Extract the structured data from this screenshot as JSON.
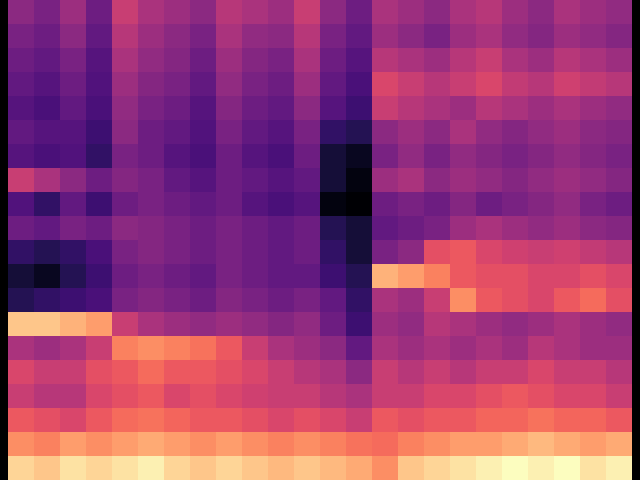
{
  "chart_data": {
    "type": "heatmap",
    "color": "magma",
    "tick_labels": false,
    "cells": [
      [
        45,
        42,
        48,
        40,
        55,
        50,
        48,
        45,
        52,
        50,
        48,
        55,
        45,
        40,
        50,
        48,
        45,
        50,
        52,
        48,
        45,
        50,
        48,
        46
      ],
      [
        42,
        40,
        45,
        38,
        52,
        48,
        45,
        42,
        50,
        46,
        45,
        52,
        42,
        38,
        48,
        45,
        42,
        48,
        50,
        46,
        44,
        48,
        46,
        44
      ],
      [
        40,
        38,
        42,
        36,
        50,
        46,
        44,
        40,
        48,
        44,
        42,
        50,
        40,
        36,
        52,
        50,
        48,
        52,
        55,
        50,
        48,
        52,
        50,
        48
      ],
      [
        38,
        36,
        40,
        35,
        48,
        44,
        42,
        38,
        46,
        42,
        40,
        48,
        38,
        34,
        58,
        55,
        52,
        55,
        58,
        54,
        52,
        56,
        54,
        52
      ],
      [
        36,
        34,
        38,
        34,
        46,
        42,
        40,
        36,
        44,
        40,
        38,
        45,
        36,
        32,
        55,
        52,
        50,
        48,
        52,
        50,
        48,
        50,
        48,
        46
      ],
      [
        38,
        36,
        36,
        32,
        45,
        40,
        38,
        35,
        42,
        38,
        36,
        42,
        30,
        28,
        45,
        48,
        45,
        50,
        46,
        44,
        46,
        48,
        45,
        44
      ],
      [
        36,
        34,
        35,
        30,
        42,
        40,
        36,
        34,
        40,
        36,
        34,
        40,
        25,
        22,
        42,
        46,
        42,
        46,
        44,
        42,
        44,
        46,
        44,
        42
      ],
      [
        55,
        50,
        45,
        40,
        44,
        42,
        38,
        36,
        40,
        38,
        36,
        38,
        25,
        20,
        48,
        50,
        45,
        48,
        46,
        44,
        46,
        48,
        46,
        44
      ],
      [
        35,
        30,
        38,
        32,
        40,
        42,
        40,
        38,
        40,
        36,
        34,
        36,
        20,
        18,
        40,
        42,
        40,
        44,
        40,
        42,
        44,
        46,
        42,
        40
      ],
      [
        40,
        38,
        42,
        40,
        45,
        44,
        42,
        40,
        42,
        40,
        38,
        40,
        28,
        25,
        38,
        40,
        42,
        48,
        50,
        48,
        46,
        48,
        45,
        44
      ],
      [
        30,
        28,
        30,
        34,
        42,
        44,
        42,
        40,
        42,
        40,
        38,
        40,
        30,
        25,
        42,
        45,
        60,
        62,
        58,
        56,
        55,
        56,
        54,
        52
      ],
      [
        25,
        22,
        28,
        32,
        40,
        42,
        40,
        38,
        42,
        40,
        38,
        38,
        32,
        28,
        75,
        72,
        68,
        62,
        60,
        60,
        58,
        58,
        60,
        58
      ],
      [
        28,
        30,
        32,
        34,
        42,
        44,
        42,
        40,
        44,
        42,
        40,
        42,
        38,
        30,
        50,
        48,
        55,
        70,
        62,
        60,
        58,
        62,
        65,
        60
      ],
      [
        78,
        78,
        75,
        72,
        55,
        50,
        48,
        46,
        48,
        46,
        44,
        46,
        40,
        32,
        48,
        46,
        52,
        50,
        48,
        46,
        48,
        50,
        48,
        46
      ],
      [
        50,
        48,
        50,
        55,
        68,
        70,
        68,
        66,
        62,
        55,
        50,
        48,
        45,
        38,
        50,
        48,
        50,
        48,
        50,
        48,
        52,
        50,
        48,
        48
      ],
      [
        58,
        55,
        55,
        60,
        62,
        65,
        62,
        62,
        60,
        58,
        55,
        52,
        50,
        45,
        55,
        52,
        55,
        52,
        55,
        55,
        58,
        55,
        55,
        52
      ],
      [
        55,
        52,
        52,
        58,
        60,
        62,
        58,
        60,
        58,
        56,
        55,
        55,
        52,
        50,
        55,
        55,
        58,
        58,
        60,
        62,
        60,
        58,
        58,
        55
      ],
      [
        62,
        60,
        58,
        62,
        65,
        66,
        64,
        62,
        62,
        60,
        58,
        60,
        58,
        55,
        62,
        60,
        62,
        62,
        64,
        64,
        66,
        64,
        64,
        62
      ],
      [
        70,
        68,
        72,
        70,
        72,
        74,
        72,
        70,
        72,
        70,
        68,
        70,
        68,
        66,
        65,
        68,
        70,
        72,
        72,
        74,
        76,
        74,
        72,
        74
      ],
      [
        80,
        78,
        82,
        80,
        82,
        84,
        80,
        78,
        80,
        78,
        76,
        78,
        76,
        74,
        70,
        78,
        80,
        82,
        84,
        86,
        84,
        86,
        82,
        84
      ]
    ]
  }
}
